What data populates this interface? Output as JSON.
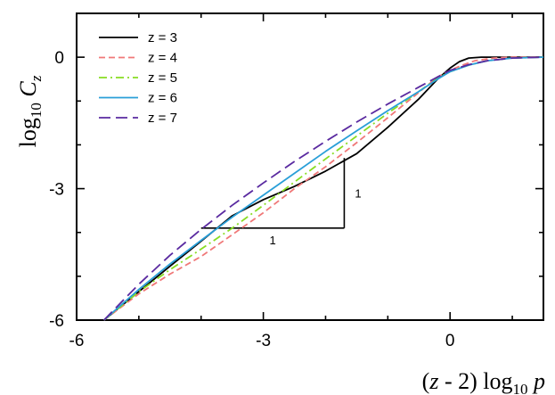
{
  "chart_data": {
    "type": "line",
    "xlabel": {
      "pre": "(",
      "var": "z",
      "mid": " - 2) log",
      "sub": "10",
      "post": " ",
      "var2": "p"
    },
    "ylabel": {
      "pre": "log",
      "sub": "10",
      "post": " ",
      "var": "C",
      "varsub": "z"
    },
    "xlim": [
      -6,
      1.5
    ],
    "ylim": [
      -6,
      1
    ],
    "xticks": [
      -6,
      -3,
      0
    ],
    "yticks": [
      -6,
      -3,
      0
    ],
    "xtick_labels": [
      "-6",
      "-3",
      "0"
    ],
    "ytick_labels": [
      "-6",
      "-3",
      "0"
    ],
    "grid": false,
    "legend_position": "top-left",
    "series": [
      {
        "name": "z = 3",
        "color": "#000000",
        "dash": "solid",
        "x": [
          -5.56,
          -5.0,
          -4.5,
          -4.0,
          -3.5,
          -3.0,
          -2.5,
          -2.0,
          -1.5,
          -1.0,
          -0.5,
          -0.2,
          0.0,
          0.15,
          0.3,
          0.5,
          0.8,
          1.5
        ],
        "y": [
          -6.0,
          -5.35,
          -4.77,
          -4.2,
          -3.62,
          -3.25,
          -2.95,
          -2.6,
          -2.2,
          -1.6,
          -0.95,
          -0.5,
          -0.25,
          -0.1,
          -0.02,
          0.0,
          0.0,
          0.0
        ]
      },
      {
        "name": "z = 4",
        "color": "#f07878",
        "dash": "dashed",
        "x": [
          -5.56,
          -5.0,
          -4.5,
          -4.0,
          -3.5,
          -3.0,
          -2.5,
          -2.0,
          -1.5,
          -1.0,
          -0.5,
          -0.2,
          0.0,
          0.2,
          0.4,
          0.7,
          1.0,
          1.5
        ],
        "y": [
          -6.0,
          -5.4,
          -4.95,
          -4.55,
          -4.05,
          -3.55,
          -3.0,
          -2.5,
          -1.95,
          -1.38,
          -0.8,
          -0.45,
          -0.3,
          -0.18,
          -0.08,
          -0.02,
          0.0,
          0.0
        ]
      },
      {
        "name": "z = 5",
        "color": "#88dd22",
        "dash": "dashdot",
        "x": [
          -5.56,
          -5.0,
          -4.5,
          -4.0,
          -3.5,
          -3.0,
          -2.5,
          -2.0,
          -1.5,
          -1.0,
          -0.5,
          -0.2,
          0.0,
          0.3,
          0.6,
          1.0,
          1.5
        ],
        "y": [
          -6.0,
          -5.35,
          -4.85,
          -4.38,
          -3.9,
          -3.38,
          -2.85,
          -2.32,
          -1.8,
          -1.28,
          -0.78,
          -0.48,
          -0.33,
          -0.18,
          -0.08,
          -0.02,
          0.0
        ]
      },
      {
        "name": "z = 6",
        "color": "#2a9fd8",
        "dash": "solid",
        "x": [
          -5.56,
          -5.0,
          -4.5,
          -4.0,
          -3.5,
          -3.0,
          -2.5,
          -2.0,
          -1.5,
          -1.0,
          -0.5,
          -0.2,
          0.0,
          0.3,
          0.6,
          1.0,
          1.5
        ],
        "y": [
          -6.0,
          -5.3,
          -4.72,
          -4.18,
          -3.65,
          -3.15,
          -2.65,
          -2.15,
          -1.68,
          -1.22,
          -0.78,
          -0.5,
          -0.33,
          -0.18,
          -0.08,
          -0.02,
          0.0
        ]
      },
      {
        "name": "z = 7",
        "color": "#5a2aa0",
        "dash": "longdash",
        "x": [
          -5.56,
          -5.0,
          -4.5,
          -4.0,
          -3.5,
          -3.0,
          -2.5,
          -2.0,
          -1.5,
          -1.0,
          -0.5,
          -0.2,
          0.0,
          0.3,
          0.6,
          1.0,
          1.5
        ],
        "y": [
          -6.0,
          -5.18,
          -4.52,
          -3.93,
          -3.38,
          -2.87,
          -2.38,
          -1.92,
          -1.48,
          -1.07,
          -0.68,
          -0.45,
          -0.3,
          -0.17,
          -0.08,
          -0.02,
          0.0
        ]
      }
    ],
    "annotations": {
      "slope_triangle": {
        "corner": [
          -1.7,
          -3.9
        ],
        "run": 2.3,
        "rise": 1.6,
        "run_label": "1",
        "rise_label": "1"
      }
    }
  }
}
